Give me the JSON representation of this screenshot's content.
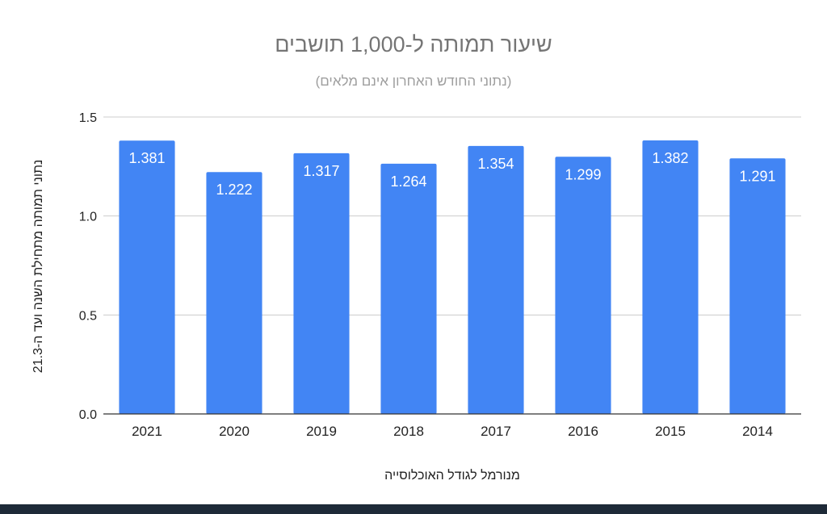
{
  "chart_data": {
    "type": "bar",
    "title": "שיעור תמותה ל-1,000 תושבים",
    "subtitle": "(נתוני החודש האחרון אינם מלאים)",
    "xlabel": "מנורמל לגודל האוכלוסייה",
    "ylabel": "נתוני תמותה מתחילת השנה ועד ה-21.3",
    "categories": [
      "2021",
      "2020",
      "2019",
      "2018",
      "2017",
      "2016",
      "2015",
      "2014"
    ],
    "values": [
      1.381,
      1.222,
      1.317,
      1.264,
      1.354,
      1.299,
      1.382,
      1.291
    ],
    "value_labels": [
      "1.381",
      "1.222",
      "1.317",
      "1.264",
      "1.354",
      "1.299",
      "1.382",
      "1.291"
    ],
    "ylim": [
      0,
      1.5
    ],
    "yticks": [
      0,
      0.5,
      1.0,
      1.5
    ],
    "ytick_labels": [
      "0.0",
      "0.5",
      "1.0",
      "1.5"
    ],
    "grid": true,
    "legend": "none",
    "bar_color": "#4285f4",
    "label_color": "#ffffff",
    "title_color": "#757575",
    "axis_text_color": "#222222",
    "grid_color": "#cccccc"
  }
}
